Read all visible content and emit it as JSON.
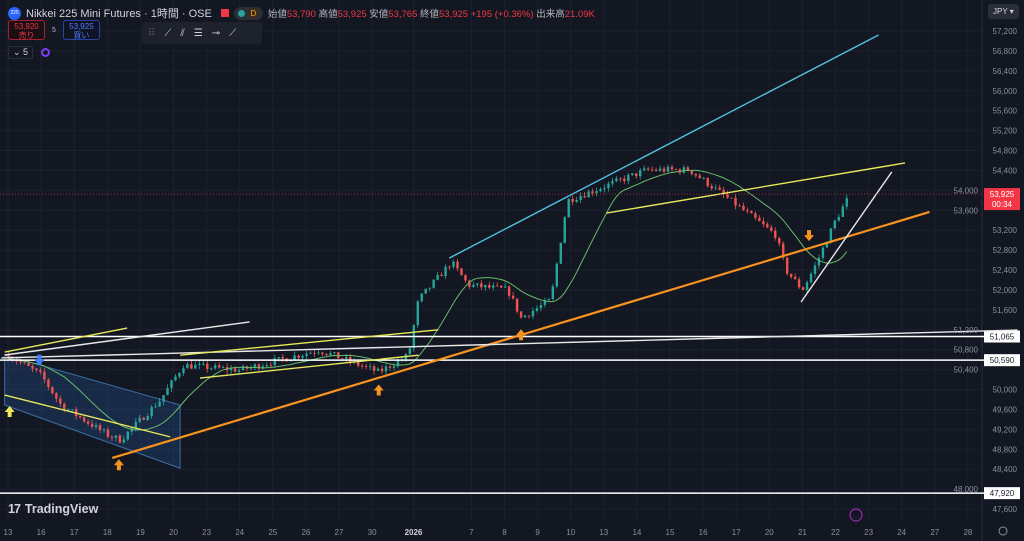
{
  "header": {
    "symbol_badge": "225",
    "title": "Nikkei 225 Mini Futures · 1時間 · OSE",
    "d_badge": "D",
    "ohlc": [
      {
        "label": "始値",
        "value": "53,790"
      },
      {
        "label": "高値",
        "value": "53,925"
      },
      {
        "label": "安値",
        "value": "53,765"
      },
      {
        "label": "終値",
        "value": "53,925"
      }
    ],
    "change": "+195 (+0.36%)",
    "volume_label": "出来高",
    "volume": "21.09K"
  },
  "trade": {
    "sell_price": "53,920",
    "sell_label": "売り",
    "spread": "5",
    "buy_price": "53,925",
    "buy_label": "買い"
  },
  "indicator": {
    "count": "5"
  },
  "currency": "JPY",
  "logo": "TradingView",
  "colors": {
    "bg": "#131722",
    "up": "#26a69a",
    "down": "#ef5350",
    "ma": "#66bb6a",
    "cyan": "#4fc3e0",
    "yellow": "#e8e85a",
    "orange": "#f7931e",
    "white": "#e8e8e8",
    "channel": "#2a5a8a"
  },
  "chart_data": {
    "type": "candlestick",
    "title": "Nikkei 225 Mini Futures · 1時間 · OSE",
    "ylim": [
      47400,
      57400
    ],
    "y_ticks": [
      57200,
      56800,
      56400,
      56000,
      55600,
      55200,
      54800,
      54400,
      54000,
      53600,
      53200,
      52800,
      52400,
      52000,
      51600,
      51200,
      50800,
      50400,
      50000,
      49600,
      49200,
      48800,
      48400,
      48000,
      47600
    ],
    "x_labels": [
      "13",
      "16",
      "17",
      "18",
      "19",
      "20",
      "23",
      "24",
      "25",
      "26",
      "27",
      "30",
      "2026",
      "7",
      "8",
      "9",
      "10",
      "13",
      "14",
      "15",
      "16",
      "17",
      "20",
      "21",
      "22",
      "23",
      "24",
      "27",
      "28"
    ],
    "x_label_pos": [
      0,
      1,
      2,
      3,
      4,
      5,
      6,
      7,
      8,
      9,
      10,
      11,
      12.25,
      14,
      15,
      16,
      17,
      18,
      19,
      20,
      21,
      22,
      23,
      24,
      25,
      26,
      27,
      28,
      29
    ],
    "price_path": [
      [
        0,
        50694
      ],
      [
        1,
        50290
      ],
      [
        1.6,
        49690
      ],
      [
        3,
        49090
      ],
      [
        3.4,
        48990
      ],
      [
        4.6,
        49790
      ],
      [
        5.3,
        50490
      ],
      [
        7,
        50390
      ],
      [
        9.4,
        50795
      ],
      [
        11.2,
        50350
      ],
      [
        12.1,
        50690
      ],
      [
        12.4,
        51800
      ],
      [
        13.4,
        52560
      ],
      [
        13.9,
        52100
      ],
      [
        15.1,
        52000
      ],
      [
        15.5,
        51440
      ],
      [
        16.4,
        51800
      ],
      [
        16.9,
        53800
      ],
      [
        18.1,
        54100
      ],
      [
        19.3,
        54410
      ],
      [
        20.6,
        54410
      ],
      [
        22,
        53710
      ],
      [
        23.2,
        53100
      ],
      [
        23.5,
        52400
      ],
      [
        24,
        52000
      ],
      [
        24.4,
        52500
      ],
      [
        25,
        53400
      ],
      [
        25.45,
        53925
      ]
    ],
    "last_price": "53,925",
    "countdown": "00:34",
    "horizontal_levels": [
      {
        "value": "51,065"
      },
      {
        "value": "50,590"
      },
      {
        "value": "47,920"
      }
    ],
    "trend_lines": [
      {
        "name": "cyan-upper-trendline",
        "color": "cyan",
        "p": [
          [
            13.33,
            52640
          ],
          [
            26.3,
            57120
          ]
        ]
      },
      {
        "name": "yellow-resistance-line",
        "color": "yellow",
        "p": [
          [
            18.08,
            53545
          ],
          [
            27.1,
            54550
          ]
        ]
      },
      {
        "name": "orange-support-line",
        "color": "orange",
        "p": [
          [
            3.15,
            48626
          ],
          [
            27.84,
            53566
          ]
        ]
      },
      {
        "name": "white-wedge-line",
        "color": "white",
        "p": [
          [
            23.96,
            51758
          ],
          [
            26.7,
            54370
          ]
        ]
      },
      {
        "name": "white-long-line",
        "color": "white",
        "p": [
          [
            -0.2,
            50634
          ],
          [
            30.5,
            51196
          ]
        ]
      },
      {
        "name": "white-short-line",
        "color": "white",
        "p": [
          [
            -0.1,
            50694
          ],
          [
            7.3,
            51357
          ]
        ]
      },
      {
        "name": "yellow-upper-left-line",
        "color": "yellow",
        "p": [
          [
            -0.1,
            50754
          ],
          [
            3.6,
            51236
          ]
        ]
      },
      {
        "name": "yellow-lower-channel-line",
        "color": "yellow",
        "p": [
          [
            -0.1,
            49890
          ],
          [
            4.9,
            49050
          ]
        ]
      },
      {
        "name": "yellow-mid-upper-line",
        "color": "yellow",
        "p": [
          [
            5.2,
            50690
          ],
          [
            13,
            51200
          ]
        ]
      },
      {
        "name": "yellow-mid-lower-line",
        "color": "yellow",
        "p": [
          [
            5.8,
            50230
          ],
          [
            12.4,
            50690
          ]
        ]
      }
    ],
    "arrows": [
      {
        "dir": "up",
        "color": "yellow",
        "at": [
          0.05,
          49550
        ]
      },
      {
        "dir": "down",
        "color": "#3d7bff",
        "at": [
          0.95,
          50600
        ]
      },
      {
        "dir": "up",
        "color": "orange",
        "at": [
          3.35,
          48480
        ]
      },
      {
        "dir": "up",
        "color": "orange",
        "at": [
          11.2,
          49980
        ]
      },
      {
        "dir": "up",
        "color": "orange",
        "at": [
          15.5,
          51090
        ]
      },
      {
        "dir": "down",
        "color": "orange",
        "at": [
          24.2,
          53100
        ]
      }
    ]
  }
}
